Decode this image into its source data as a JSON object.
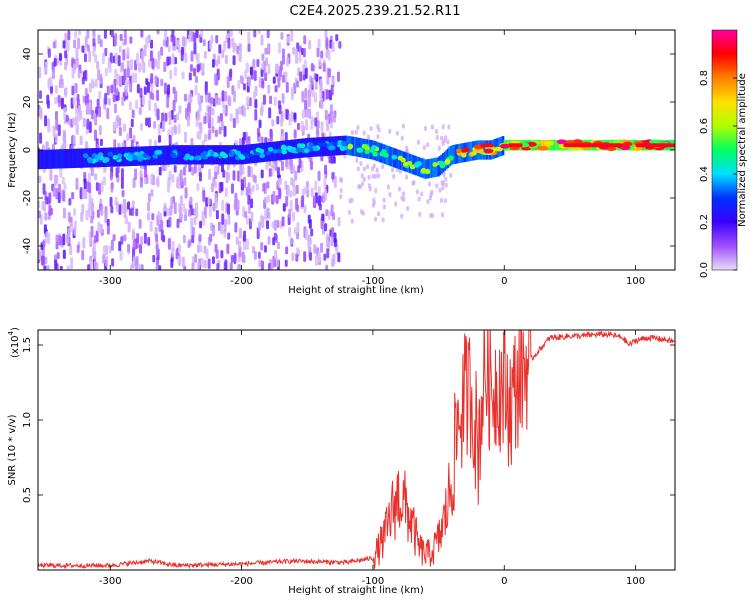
{
  "title": "C2E4.2025.239.21.52.R11",
  "chart_data": [
    {
      "type": "heatmap",
      "name": "spectrogram",
      "xlabel": "Height of straight line (km)",
      "ylabel": "Frequency (Hz)",
      "xlim": [
        -355,
        130
      ],
      "ylim": [
        -50,
        50
      ],
      "xticks": [
        -300,
        -200,
        -100,
        0,
        100
      ],
      "yticks": [
        -40,
        -20,
        0,
        20,
        40
      ],
      "colorbar": {
        "label": "Normalized spectral amplitude",
        "range": [
          0,
          1
        ],
        "ticks": [
          "0.0",
          "0.2",
          "0.4",
          "0.6",
          "0.8"
        ],
        "tick_values": [
          0.0,
          0.2,
          0.4,
          0.6,
          0.8
        ],
        "colors": [
          "#e8dcf7",
          "#a050ff",
          "#3a00ff",
          "#0030ff",
          "#00e0ff",
          "#00ff60",
          "#b0ff00",
          "#ffe000",
          "#ff8000",
          "#ff0000",
          "#ff00a0"
        ]
      },
      "ridge": {
        "x": [
          -355,
          -300,
          -250,
          -200,
          -150,
          -120,
          -100,
          -80,
          -60,
          -50,
          -40,
          -30,
          -20,
          -10,
          0,
          20,
          60,
          100,
          130
        ],
        "freq": [
          -4,
          -3,
          -2,
          -2,
          1,
          2,
          0,
          -4,
          -8,
          -7,
          -2,
          -1,
          0,
          0,
          2,
          2,
          2,
          2,
          2
        ]
      }
    },
    {
      "type": "line",
      "name": "snr",
      "xlabel": "Height of straight line (km)",
      "ylabel": "SNR (10 * v/v)",
      "y_multiplier": "(x10",
      "y_multiplier_exp": "4",
      "y_multiplier_close": ")",
      "xlim": [
        -355,
        130
      ],
      "ylim": [
        0,
        1.6
      ],
      "xticks": [
        -300,
        -200,
        -100,
        0,
        100
      ],
      "yticks": [
        0.5,
        1.0,
        1.5
      ],
      "ytick_labels": [
        "0.5",
        "1.0",
        "1.5"
      ],
      "color": "#e8302c",
      "x": [
        -355,
        -300,
        -270,
        -250,
        -200,
        -160,
        -120,
        -100,
        -95,
        -90,
        -85,
        -80,
        -75,
        -70,
        -65,
        -60,
        -55,
        -50,
        -45,
        -40,
        -35,
        -30,
        -25,
        -20,
        -15,
        -10,
        -5,
        0,
        5,
        10,
        15,
        20,
        25,
        30,
        35,
        40,
        50,
        60,
        70,
        80,
        90,
        95,
        100,
        110,
        120,
        130
      ],
      "y": [
        0.03,
        0.03,
        0.06,
        0.03,
        0.04,
        0.06,
        0.05,
        0.08,
        0.15,
        0.25,
        0.4,
        0.5,
        0.42,
        0.3,
        0.15,
        0.1,
        0.12,
        0.2,
        0.35,
        0.6,
        1.0,
        1.15,
        1.2,
        0.8,
        1.35,
        1.2,
        1.25,
        1.2,
        1.1,
        1.25,
        1.35,
        1.4,
        1.45,
        1.5,
        1.55,
        1.55,
        1.56,
        1.56,
        1.57,
        1.57,
        1.55,
        1.5,
        1.53,
        1.55,
        1.54,
        1.52
      ]
    }
  ]
}
